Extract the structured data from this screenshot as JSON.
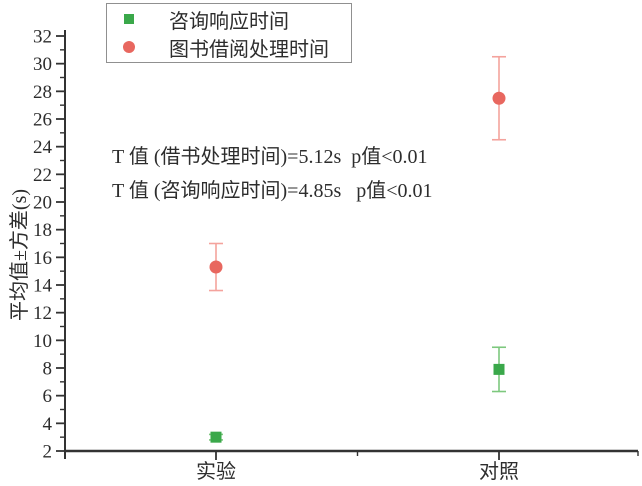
{
  "chart_data": {
    "type": "scatter",
    "title": "",
    "categories": [
      "实验",
      "对照"
    ],
    "series": [
      {
        "name": "咨询响应时间",
        "marker": "square",
        "color": "#3aa84a",
        "error_color": "#7dc87e",
        "values": [
          3.0,
          7.9
        ],
        "errors": [
          0.2,
          1.6
        ]
      },
      {
        "name": "图书借阅处理时间",
        "marker": "circle",
        "color": "#e8675f",
        "error_color": "#f4a39d",
        "values": [
          15.3,
          27.5
        ],
        "errors": [
          1.7,
          3.0
        ]
      }
    ],
    "xlabel": "",
    "ylabel": "平均值±方差(s)",
    "ylim": [
      2,
      32
    ],
    "ytick_step": 2,
    "ytick_minor_step": 1,
    "grid": false,
    "legend_position": "top-left",
    "annotations": [
      "T 值 (借书处理时间)=5.12s  p值<0.01",
      "T 值 (咨询响应时间)=4.85s   p值<0.01"
    ]
  },
  "colors": {
    "axis": "#333333",
    "text": "#2d2d2d",
    "legend_border": "#909090",
    "background": "#ffffff"
  }
}
